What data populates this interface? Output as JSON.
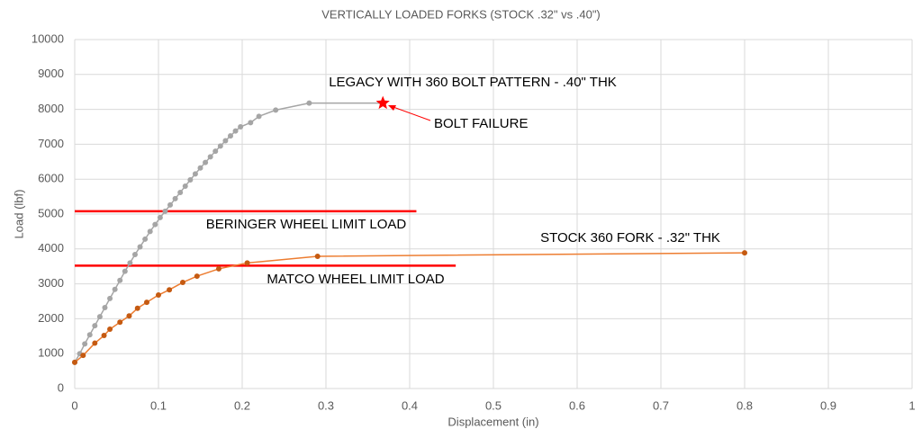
{
  "chart_data": {
    "type": "scatter-line",
    "title": "VERTICALLY LOADED FORKS (STOCK .32\" vs .40\")",
    "x_label": "Displacement (in)",
    "y_label": "Load (lbf)",
    "xlim": [
      0,
      1
    ],
    "xticks": [
      0,
      0.1,
      0.2,
      0.3,
      0.4,
      0.5,
      0.6,
      0.7,
      0.8,
      0.9,
      1
    ],
    "ylim": [
      0,
      10000
    ],
    "yticks": [
      0,
      1000,
      2000,
      3000,
      4000,
      5000,
      6000,
      7000,
      8000,
      9000,
      10000
    ],
    "grid": true,
    "series": [
      {
        "name": "LEGACY WITH 360 BOLT PATTERN - .40\" THK",
        "color": "#a5a5a5",
        "end_marker": "star",
        "end_marker_color": "#ff0000",
        "x": [
          0,
          0.006,
          0.012,
          0.018,
          0.024,
          0.03,
          0.036,
          0.042,
          0.048,
          0.054,
          0.06,
          0.066,
          0.072,
          0.078,
          0.084,
          0.09,
          0.096,
          0.102,
          0.108,
          0.114,
          0.12,
          0.126,
          0.132,
          0.138,
          0.144,
          0.15,
          0.156,
          0.162,
          0.168,
          0.174,
          0.18,
          0.186,
          0.192,
          0.198,
          0.21,
          0.22,
          0.24,
          0.28,
          0.368
        ],
        "values": [
          750,
          1000,
          1280,
          1540,
          1800,
          2060,
          2320,
          2580,
          2840,
          3100,
          3360,
          3600,
          3840,
          4060,
          4280,
          4500,
          4700,
          4900,
          5080,
          5260,
          5440,
          5620,
          5800,
          5980,
          6150,
          6320,
          6480,
          6640,
          6800,
          6950,
          7100,
          7240,
          7380,
          7500,
          7620,
          7800,
          7980,
          8180,
          8180
        ]
      },
      {
        "name": "STOCK 360 FORK - .32\" THK",
        "color": "#ed7d31",
        "marker_color": "#c55a11",
        "x": [
          0,
          0.01,
          0.024,
          0.035,
          0.042,
          0.054,
          0.065,
          0.075,
          0.086,
          0.1,
          0.113,
          0.129,
          0.146,
          0.172,
          0.206,
          0.29,
          0.8
        ],
        "values": [
          750,
          950,
          1300,
          1520,
          1700,
          1900,
          2080,
          2300,
          2470,
          2680,
          2830,
          3040,
          3220,
          3430,
          3600,
          3790,
          3890
        ]
      }
    ],
    "reference_lines": [
      {
        "name": "BERINGER WHEEL LIMIT LOAD",
        "y": 5080,
        "x_end": 0.408,
        "color": "#ff0000"
      },
      {
        "name": "MATCO WHEEL LIMIT LOAD",
        "y": 3520,
        "x_end": 0.455,
        "color": "#ff0000"
      }
    ],
    "annotation": "BOLT FAILURE"
  }
}
